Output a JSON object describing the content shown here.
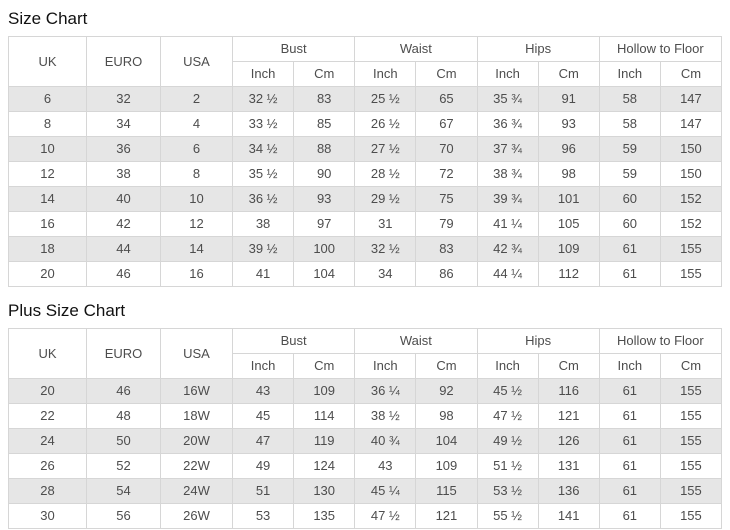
{
  "colors": {
    "row_alt_background": "#e6e6e6",
    "row_background": "#ffffff",
    "border": "#d6d6d6",
    "cell_text": "#4d4d4d",
    "title_text": "#111111"
  },
  "size_chart": {
    "title": "Size Chart",
    "base_headers": [
      "UK",
      "EURO",
      "USA"
    ],
    "group_headers": [
      "Bust",
      "Waist",
      "Hips",
      "Hollow to Floor"
    ],
    "sub_headers": [
      "Inch",
      "Cm"
    ],
    "rows": [
      [
        "6",
        "32",
        "2",
        "32 ½",
        "83",
        "25 ½",
        "65",
        "35 ¾",
        "91",
        "58",
        "147"
      ],
      [
        "8",
        "34",
        "4",
        "33 ½",
        "85",
        "26 ½",
        "67",
        "36 ¾",
        "93",
        "58",
        "147"
      ],
      [
        "10",
        "36",
        "6",
        "34 ½",
        "88",
        "27 ½",
        "70",
        "37 ¾",
        "96",
        "59",
        "150"
      ],
      [
        "12",
        "38",
        "8",
        "35 ½",
        "90",
        "28 ½",
        "72",
        "38 ¾",
        "98",
        "59",
        "150"
      ],
      [
        "14",
        "40",
        "10",
        "36 ½",
        "93",
        "29 ½",
        "75",
        "39 ¾",
        "101",
        "60",
        "152"
      ],
      [
        "16",
        "42",
        "12",
        "38",
        "97",
        "31",
        "79",
        "41 ¼",
        "105",
        "60",
        "152"
      ],
      [
        "18",
        "44",
        "14",
        "39 ½",
        "100",
        "32 ½",
        "83",
        "42 ¾",
        "109",
        "61",
        "155"
      ],
      [
        "20",
        "46",
        "16",
        "41",
        "104",
        "34",
        "86",
        "44 ¼",
        "112",
        "61",
        "155"
      ]
    ]
  },
  "plus_size_chart": {
    "title": "Plus Size Chart",
    "base_headers": [
      "UK",
      "EURO",
      "USA"
    ],
    "group_headers": [
      "Bust",
      "Waist",
      "Hips",
      "Hollow to Floor"
    ],
    "sub_headers": [
      "Inch",
      "Cm"
    ],
    "rows": [
      [
        "20",
        "46",
        "16W",
        "43",
        "109",
        "36 ¼",
        "92",
        "45 ½",
        "116",
        "61",
        "155"
      ],
      [
        "22",
        "48",
        "18W",
        "45",
        "114",
        "38 ½",
        "98",
        "47 ½",
        "121",
        "61",
        "155"
      ],
      [
        "24",
        "50",
        "20W",
        "47",
        "119",
        "40 ¾",
        "104",
        "49 ½",
        "126",
        "61",
        "155"
      ],
      [
        "26",
        "52",
        "22W",
        "49",
        "124",
        "43",
        "109",
        "51 ½",
        "131",
        "61",
        "155"
      ],
      [
        "28",
        "54",
        "24W",
        "51",
        "130",
        "45 ¼",
        "115",
        "53 ½",
        "136",
        "61",
        "155"
      ],
      [
        "30",
        "56",
        "26W",
        "53",
        "135",
        "47 ½",
        "121",
        "55 ½",
        "141",
        "61",
        "155"
      ]
    ]
  }
}
